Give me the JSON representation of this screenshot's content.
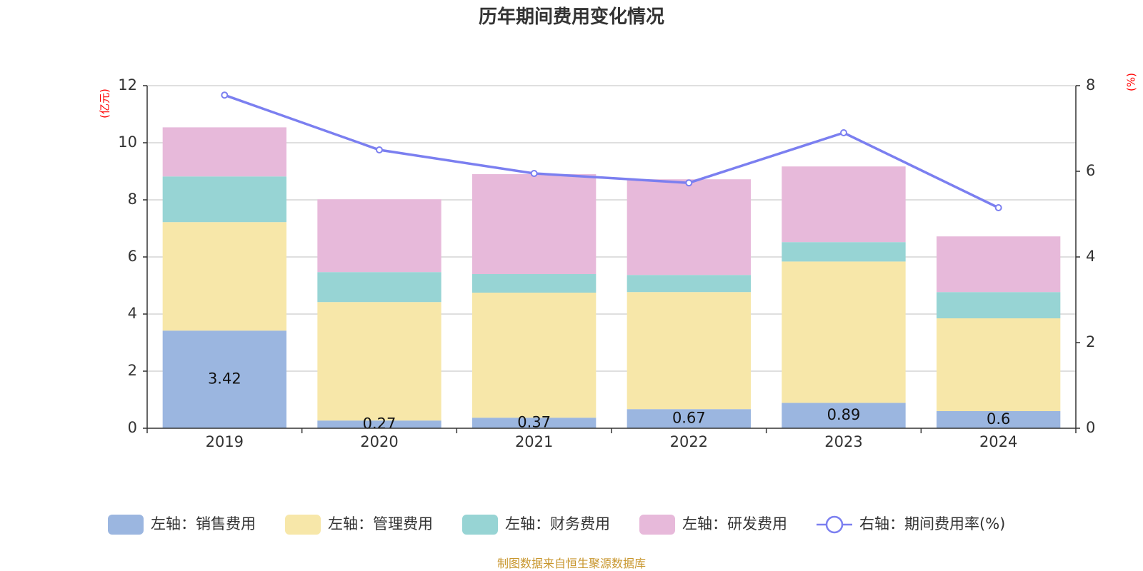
{
  "chart_data": {
    "type": "bar",
    "title": "历年期间费用变化情况",
    "categories": [
      "2019",
      "2020",
      "2021",
      "2022",
      "2023",
      "2024"
    ],
    "series": [
      {
        "name": "左轴：销售费用",
        "axis": "left",
        "color": "#9bb6e0",
        "values": [
          3.42,
          0.27,
          0.37,
          0.67,
          0.89,
          0.6
        ],
        "labels": [
          "3.42",
          "0.27",
          "0.37",
          "0.67",
          "0.89",
          "0.6"
        ]
      },
      {
        "name": "左轴：管理费用",
        "axis": "left",
        "color": "#f7e7a9",
        "values": [
          3.8,
          4.15,
          4.38,
          4.1,
          4.95,
          3.25
        ]
      },
      {
        "name": "左轴：财务费用",
        "axis": "left",
        "color": "#97d4d4",
        "values": [
          1.6,
          1.05,
          0.65,
          0.6,
          0.68,
          0.92
        ]
      },
      {
        "name": "左轴：研发费用",
        "axis": "left",
        "color": "#e7b9da",
        "values": [
          1.72,
          2.55,
          3.5,
          3.35,
          2.65,
          1.95
        ]
      }
    ],
    "line_series": {
      "name": "右轴：期间费用率(%)",
      "axis": "right",
      "color": "#7b7ff0",
      "values": [
        7.78,
        6.5,
        5.95,
        5.73,
        6.9,
        5.15
      ]
    },
    "y_left": {
      "label": "(亿元)",
      "ylim": [
        0,
        12
      ],
      "ticks": [
        "0",
        "2",
        "4",
        "6",
        "8",
        "10",
        "12"
      ]
    },
    "y_right": {
      "label": "(%)",
      "ylim": [
        0,
        8
      ],
      "ticks": [
        "0",
        "2",
        "4",
        "6",
        "8"
      ]
    },
    "grid": true,
    "legend_position": "bottom"
  },
  "source": "制图数据来自恒生聚源数据库"
}
